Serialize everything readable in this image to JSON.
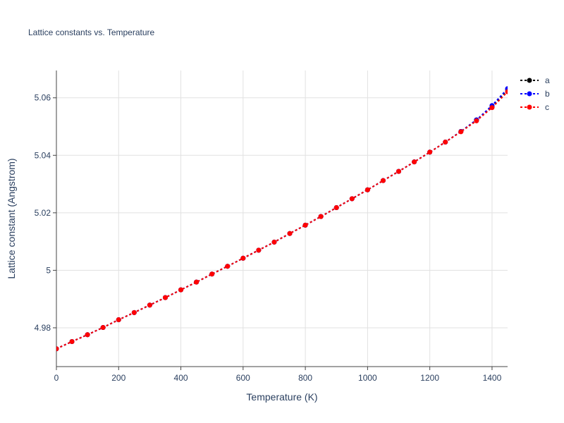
{
  "chart_data": {
    "type": "line",
    "title": "Lattice constants vs. Temperature",
    "xlabel": "Temperature (K)",
    "ylabel": "Lattice constant (Angstrom)",
    "xlim": [
      0,
      1450
    ],
    "ylim": [
      4.9665,
      5.0695
    ],
    "x_ticks": [
      0,
      200,
      400,
      600,
      800,
      1000,
      1200,
      1400
    ],
    "x_tick_labels": [
      "0",
      "200",
      "400",
      "600",
      "800",
      "1000",
      "1200",
      "1400"
    ],
    "y_ticks": [
      4.98,
      5.0,
      5.02,
      5.04,
      5.06
    ],
    "y_tick_labels": [
      "4.98",
      "5",
      "5.02",
      "5.04",
      "5.06"
    ],
    "grid": true,
    "legend_position": "top-right outside",
    "x": [
      0,
      50,
      100,
      150,
      200,
      250,
      300,
      350,
      400,
      450,
      500,
      550,
      600,
      650,
      700,
      750,
      800,
      850,
      900,
      950,
      1000,
      1050,
      1100,
      1150,
      1200,
      1250,
      1300,
      1350,
      1400,
      1450
    ],
    "series": [
      {
        "name": "a",
        "color": "#000000",
        "values": [
          4.9727,
          4.9752,
          4.9776,
          4.9801,
          4.9828,
          4.9853,
          4.9879,
          4.9905,
          4.9932,
          4.9959,
          4.9987,
          5.0014,
          5.0042,
          5.007,
          5.0098,
          5.0128,
          5.0157,
          5.0187,
          5.0218,
          5.0249,
          5.028,
          5.0312,
          5.0344,
          5.0377,
          5.0411,
          5.0446,
          5.0483,
          5.0523,
          5.0568,
          5.063
        ]
      },
      {
        "name": "b",
        "color": "#0000ff",
        "values": [
          4.9727,
          4.9752,
          4.9776,
          4.9801,
          4.9828,
          4.9853,
          4.9879,
          4.9905,
          4.9932,
          4.9959,
          4.9987,
          5.0014,
          5.0042,
          5.007,
          5.0098,
          5.0128,
          5.0157,
          5.0187,
          5.0218,
          5.0249,
          5.028,
          5.0312,
          5.0344,
          5.0377,
          5.0411,
          5.0446,
          5.0483,
          5.0523,
          5.0573,
          5.0632
        ]
      },
      {
        "name": "c",
        "color": "#ff0000",
        "values": [
          4.9727,
          4.9752,
          4.9776,
          4.9801,
          4.9828,
          4.9853,
          4.9879,
          4.9905,
          4.9932,
          4.9959,
          4.9987,
          5.0014,
          5.0042,
          5.007,
          5.0098,
          5.0128,
          5.0157,
          5.0187,
          5.0218,
          5.0249,
          5.028,
          5.0312,
          5.0344,
          5.0377,
          5.0411,
          5.0446,
          5.0482,
          5.052,
          5.0566,
          5.0621
        ]
      }
    ]
  }
}
